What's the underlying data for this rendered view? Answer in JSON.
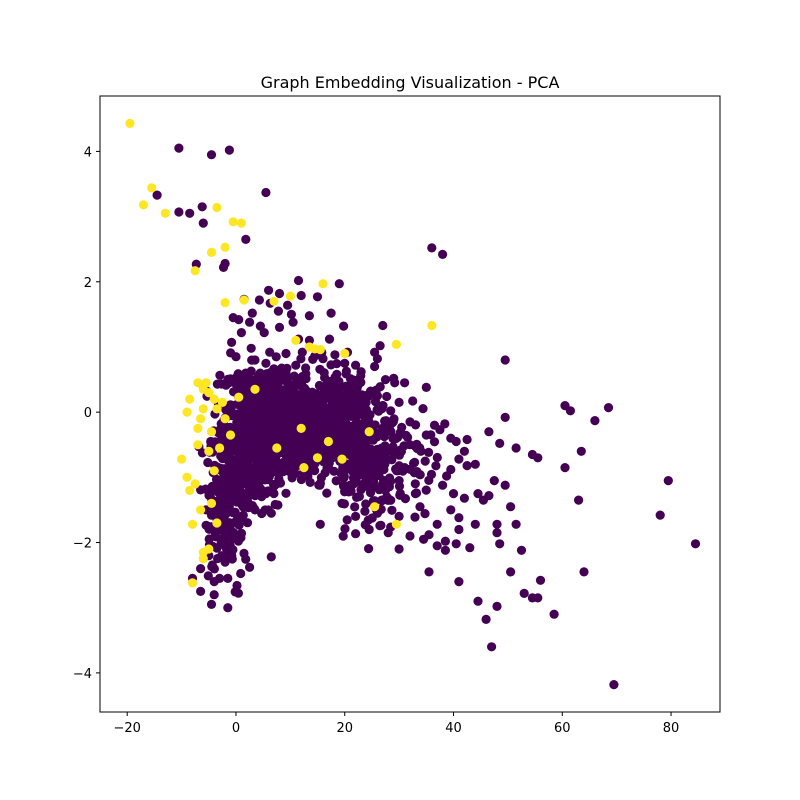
{
  "chart_data": {
    "type": "scatter",
    "title": "Graph Embedding Visualization - PCA",
    "xlabel": "",
    "ylabel": "",
    "xlim": [
      -25,
      89
    ],
    "ylim": [
      -4.6,
      4.85
    ],
    "xticks": [
      -20,
      0,
      20,
      40,
      60,
      80
    ],
    "yticks": [
      -4,
      -2,
      0,
      2,
      4
    ],
    "grid": false,
    "colors": {
      "class_0": "#440154",
      "class_1": "#fde725"
    },
    "series": [
      {
        "color": "#440154",
        "points": [
          [
            -10.5,
            4.05
          ],
          [
            -1.2,
            4.02
          ],
          [
            -4.5,
            3.95
          ],
          [
            5.5,
            3.37
          ],
          [
            -14.5,
            3.33
          ],
          [
            -6.2,
            3.15
          ],
          [
            -10.5,
            3.07
          ],
          [
            -8.5,
            3.05
          ],
          [
            -6,
            2.9
          ],
          [
            1.8,
            2.65
          ],
          [
            -7.3,
            2.27
          ],
          [
            -2,
            2.28
          ],
          [
            -2.3,
            2.22
          ],
          [
            36,
            2.52
          ],
          [
            38,
            2.42
          ],
          [
            11.5,
            2.02
          ],
          [
            19,
            1.97
          ],
          [
            6,
            1.87
          ],
          [
            8,
            1.82
          ],
          [
            12,
            1.79
          ],
          [
            15,
            1.77
          ],
          [
            1.5,
            1.73
          ],
          [
            4.3,
            1.72
          ],
          [
            6.3,
            1.67
          ],
          [
            9.5,
            1.64
          ],
          [
            3,
            1.52
          ],
          [
            7.8,
            1.55
          ],
          [
            10.2,
            1.5
          ],
          [
            -0.5,
            1.45
          ],
          [
            0.5,
            1.42
          ],
          [
            2.5,
            1.38
          ],
          [
            4.5,
            1.32
          ],
          [
            8,
            1.3
          ],
          [
            10.5,
            1.38
          ],
          [
            13.5,
            1.48
          ],
          [
            17.5,
            1.52
          ],
          [
            19.8,
            1.32
          ],
          [
            27,
            1.33
          ],
          [
            1,
            1.22
          ],
          [
            5.2,
            1.22
          ],
          [
            11.5,
            1.12
          ],
          [
            13.5,
            1.1
          ],
          [
            17.2,
            1.12
          ],
          [
            26.5,
            1.02
          ],
          [
            -0.8,
            1.07
          ],
          [
            2.8,
            0.98
          ],
          [
            6.2,
            0.92
          ],
          [
            9.2,
            0.9
          ],
          [
            12.2,
            0.92
          ],
          [
            14.5,
            0.86
          ],
          [
            18.2,
            0.88
          ],
          [
            20.5,
            0.92
          ],
          [
            25.5,
            0.92
          ],
          [
            26,
            0.82
          ],
          [
            0,
            0.85
          ],
          [
            3.5,
            0.8
          ],
          [
            16,
            0.82
          ],
          [
            20,
            0.75
          ],
          [
            22,
            0.72
          ],
          [
            25.5,
            0.7
          ],
          [
            5.5,
            0.75
          ],
          [
            11,
            0.72
          ],
          [
            23,
            0.62
          ],
          [
            29,
            0.52
          ],
          [
            31,
            0.45
          ],
          [
            35,
            0.38
          ],
          [
            27.5,
            0.5
          ],
          [
            49.5,
            0.8
          ],
          [
            60.5,
            0.1
          ],
          [
            61.5,
            0.02
          ],
          [
            68.5,
            0.07
          ],
          [
            49.5,
            -0.08
          ],
          [
            66,
            -0.13
          ],
          [
            37.5,
            -0.27
          ],
          [
            46.5,
            -0.3
          ],
          [
            39.5,
            -0.4
          ],
          [
            40.5,
            -0.45
          ],
          [
            42.5,
            -0.42
          ],
          [
            48.5,
            -0.48
          ],
          [
            51.5,
            -0.55
          ],
          [
            63.5,
            -0.6
          ],
          [
            54.5,
            -0.65
          ],
          [
            55.5,
            -0.7
          ],
          [
            42,
            -0.6
          ],
          [
            41,
            -0.72
          ],
          [
            39.5,
            -0.88
          ],
          [
            42.5,
            -0.82
          ],
          [
            44,
            -0.8
          ],
          [
            60.5,
            -0.85
          ],
          [
            47.5,
            -1.05
          ],
          [
            49.5,
            -1.12
          ],
          [
            79.5,
            -1.05
          ],
          [
            38,
            -1.12
          ],
          [
            40,
            -1.25
          ],
          [
            42,
            -1.32
          ],
          [
            44.5,
            -1.25
          ],
          [
            46.5,
            -1.28
          ],
          [
            45.5,
            -1.35
          ],
          [
            63,
            -1.35
          ],
          [
            50.5,
            -1.45
          ],
          [
            39.5,
            -1.5
          ],
          [
            41,
            -1.62
          ],
          [
            37,
            -1.72
          ],
          [
            44,
            -1.72
          ],
          [
            48,
            -1.72
          ],
          [
            51.5,
            -1.72
          ],
          [
            78,
            -1.58
          ],
          [
            35.5,
            -1.88
          ],
          [
            38.5,
            -1.98
          ],
          [
            41,
            -1.8
          ],
          [
            48,
            -1.85
          ],
          [
            32,
            -1.9
          ],
          [
            34.5,
            -1.95
          ],
          [
            37,
            -2.05
          ],
          [
            38.5,
            -2.12
          ],
          [
            40.5,
            -2.02
          ],
          [
            43,
            -2.08
          ],
          [
            48.5,
            -2.02
          ],
          [
            52.5,
            -2.12
          ],
          [
            84.5,
            -2.02
          ],
          [
            30,
            -2.1
          ],
          [
            35.5,
            -2.45
          ],
          [
            50.5,
            -2.45
          ],
          [
            64,
            -2.45
          ],
          [
            41,
            -2.6
          ],
          [
            56,
            -2.58
          ],
          [
            53,
            -2.78
          ],
          [
            54.5,
            -2.85
          ],
          [
            55.5,
            -2.85
          ],
          [
            44.5,
            -2.9
          ],
          [
            48,
            -2.98
          ],
          [
            58.5,
            -3.1
          ],
          [
            46,
            -3.18
          ],
          [
            47,
            -3.6
          ],
          [
            69.5,
            -4.18
          ],
          [
            -5.5,
            -1.5
          ],
          [
            -3,
            -1.8
          ],
          [
            -1.5,
            -2.1
          ],
          [
            -5,
            -2.2
          ],
          [
            -2,
            -2.3
          ],
          [
            -6.5,
            -2.4
          ],
          [
            -3,
            -2.55
          ],
          [
            -1.5,
            -2.55
          ],
          [
            -4,
            -2.6
          ],
          [
            -8,
            -2.55
          ],
          [
            -6.5,
            -2.75
          ],
          [
            -4,
            -2.8
          ],
          [
            -4.5,
            -2.95
          ],
          [
            -1.5,
            -3
          ],
          [
            2.5,
            -2.38
          ],
          [
            6.5,
            -2.22
          ],
          [
            3.5,
            -1.5
          ],
          [
            6.5,
            -1.55
          ],
          [
            5.5,
            -1.25
          ],
          [
            7.5,
            -1.1
          ],
          [
            15.5,
            -1.72
          ],
          [
            19.5,
            -1.4
          ],
          [
            22,
            -1.6
          ],
          [
            24.5,
            -1.8
          ],
          [
            26,
            -1.55
          ],
          [
            28,
            -1.85
          ],
          [
            30,
            -1.6
          ],
          [
            22.5,
            -1.3
          ],
          [
            27.5,
            -1.2
          ],
          [
            33,
            -1.25
          ],
          [
            30,
            -1.05
          ],
          [
            31,
            -0.85
          ],
          [
            34,
            -0.6
          ],
          [
            35,
            -0.35
          ],
          [
            36.5,
            -0.2
          ],
          [
            32,
            -0.5
          ],
          [
            28.5,
            -0.3
          ],
          [
            27,
            0.1
          ],
          [
            30,
            0.15
          ],
          [
            26,
            0.25
          ],
          [
            32,
            -0.15
          ]
        ],
        "clusters": [
          {
            "cx": 6.5,
            "cy": -0.05,
            "rx": 7,
            "ry": 0.55,
            "n": 420,
            "seed": 11
          },
          {
            "cx": 16,
            "cy": -0.1,
            "rx": 8,
            "ry": 0.55,
            "n": 360,
            "seed": 23
          },
          {
            "cx": 2.5,
            "cy": -0.7,
            "rx": 5,
            "ry": 0.7,
            "n": 240,
            "seed": 37
          },
          {
            "cx": -2,
            "cy": -1.4,
            "rx": 3.2,
            "ry": 0.9,
            "n": 170,
            "seed": 41
          },
          {
            "cx": 24,
            "cy": -0.9,
            "rx": 5.5,
            "ry": 0.7,
            "n": 180,
            "seed": 53
          },
          {
            "cx": 12,
            "cy": -0.6,
            "rx": 6,
            "ry": 0.4,
            "n": 160,
            "seed": 67
          },
          {
            "cx": 31,
            "cy": -0.7,
            "rx": 6,
            "ry": 0.7,
            "n": 70,
            "seed": 79
          },
          {
            "cx": 4,
            "cy": 0.45,
            "rx": 6,
            "ry": 0.15,
            "n": 90,
            "seed": 83
          },
          {
            "cx": 20,
            "cy": 0.25,
            "rx": 5,
            "ry": 0.25,
            "n": 70,
            "seed": 97
          }
        ]
      },
      {
        "color": "#fde725",
        "points": [
          [
            -19.5,
            4.43
          ],
          [
            -15.5,
            3.44
          ],
          [
            -17,
            3.18
          ],
          [
            -3.5,
            3.14
          ],
          [
            -13,
            3.05
          ],
          [
            -0.5,
            2.92
          ],
          [
            1,
            2.9
          ],
          [
            -2,
            2.53
          ],
          [
            -4.5,
            2.45
          ],
          [
            -7.5,
            2.17
          ],
          [
            16,
            1.97
          ],
          [
            10,
            1.78
          ],
          [
            -2,
            1.68
          ],
          [
            1.5,
            1.72
          ],
          [
            7,
            1.7
          ],
          [
            36,
            1.33
          ],
          [
            11,
            1.1
          ],
          [
            13.5,
            1
          ],
          [
            14.5,
            0.97
          ],
          [
            15.5,
            0.96
          ],
          [
            20,
            0.9
          ],
          [
            29.5,
            1.04
          ],
          [
            -7,
            0.45
          ],
          [
            -5,
            0.3
          ],
          [
            -4,
            0.2
          ],
          [
            -6,
            0.05
          ],
          [
            -9,
            0
          ],
          [
            -10,
            -0.72
          ],
          [
            -9,
            -1
          ],
          [
            -8.5,
            -1.2
          ],
          [
            -7.5,
            -1.1
          ],
          [
            -8,
            -1.72
          ],
          [
            -6,
            -2.15
          ],
          [
            -5,
            -2.1
          ],
          [
            -8,
            -2.62
          ],
          [
            -6,
            -2.25
          ],
          [
            -7,
            -0.5
          ],
          [
            -4.5,
            -0.3
          ],
          [
            -6.5,
            -0.1
          ],
          [
            -5.5,
            0.45
          ],
          [
            0.5,
            0.23
          ],
          [
            3.5,
            0.35
          ],
          [
            -2,
            -0.1
          ],
          [
            -1,
            -0.35
          ],
          [
            -3,
            -0.55
          ],
          [
            12,
            -0.25
          ],
          [
            17,
            -0.45
          ],
          [
            24.5,
            -0.3
          ],
          [
            19.5,
            -0.72
          ],
          [
            12.5,
            -0.85
          ],
          [
            15,
            -0.7
          ],
          [
            29.5,
            -1.72
          ],
          [
            25.5,
            -1.45
          ],
          [
            7.5,
            -0.55
          ],
          [
            -4.5,
            -1.4
          ],
          [
            -4,
            -0.9
          ],
          [
            -8.5,
            0.2
          ],
          [
            -7,
            -0.25
          ],
          [
            -6,
            0.35
          ],
          [
            -3.5,
            0.05
          ],
          [
            -2.5,
            0.15
          ],
          [
            -5,
            -0.6
          ],
          [
            -6.5,
            -1.5
          ],
          [
            -3.5,
            -1.7
          ]
        ]
      }
    ]
  }
}
